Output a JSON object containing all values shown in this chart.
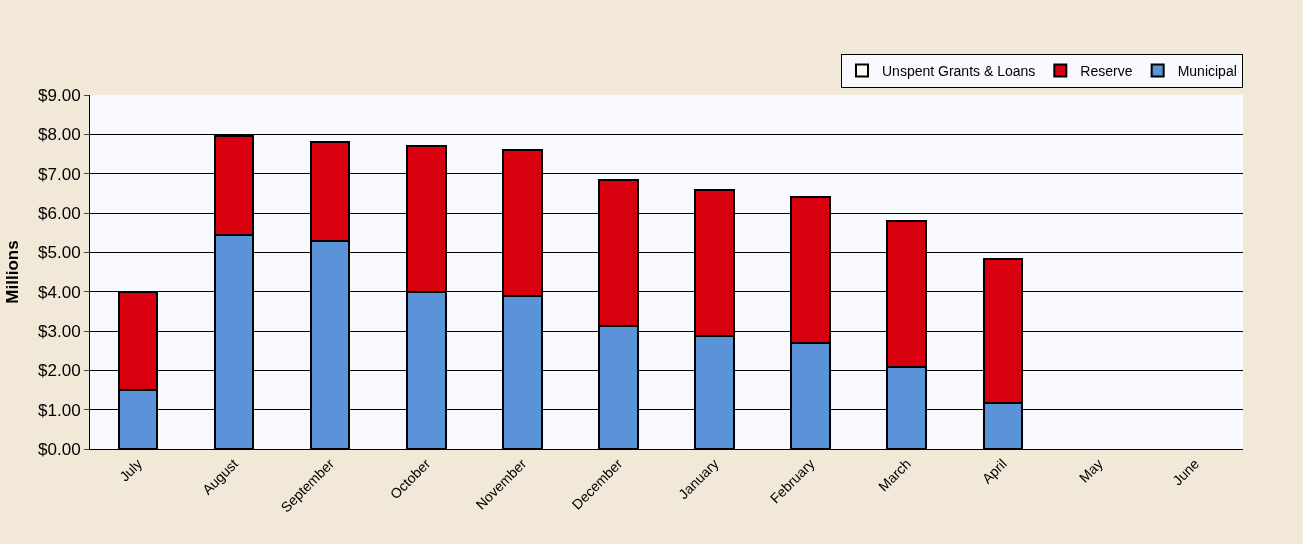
{
  "chart_data": {
    "type": "bar",
    "stacked": true,
    "ylabel": "Millions",
    "categories": [
      "July",
      "August",
      "September",
      "October",
      "November",
      "December",
      "January",
      "February",
      "March",
      "April",
      "May",
      "June"
    ],
    "series": [
      {
        "name": "Municipal",
        "color": "#5b93d8",
        "values": [
          1.5,
          5.45,
          5.3,
          4.0,
          3.9,
          3.13,
          2.87,
          2.69,
          2.08,
          1.17,
          null,
          null
        ]
      },
      {
        "name": "Reserve",
        "color": "#d9000f",
        "values": [
          2.5,
          2.5,
          2.5,
          3.7,
          3.69,
          3.72,
          3.72,
          3.71,
          3.71,
          3.67,
          null,
          null
        ]
      },
      {
        "name": "Unspent Grants & Loans",
        "color": "#fffff0",
        "values": [
          null,
          null,
          null,
          null,
          null,
          null,
          null,
          null,
          null,
          null,
          null,
          null
        ]
      }
    ],
    "ylim": [
      0,
      9
    ],
    "yticks": [
      {
        "value": 0,
        "label": "$0.00"
      },
      {
        "value": 1,
        "label": "$1.00"
      },
      {
        "value": 2,
        "label": "$2.00"
      },
      {
        "value": 3,
        "label": "$3.00"
      },
      {
        "value": 4,
        "label": "$4.00"
      },
      {
        "value": 5,
        "label": "$5.00"
      },
      {
        "value": 6,
        "label": "$6.00"
      },
      {
        "value": 7,
        "label": "$7.00"
      },
      {
        "value": 8,
        "label": "$8.00"
      },
      {
        "value": 9,
        "label": "$9.00"
      }
    ],
    "grid": "y",
    "legend": "top right"
  }
}
